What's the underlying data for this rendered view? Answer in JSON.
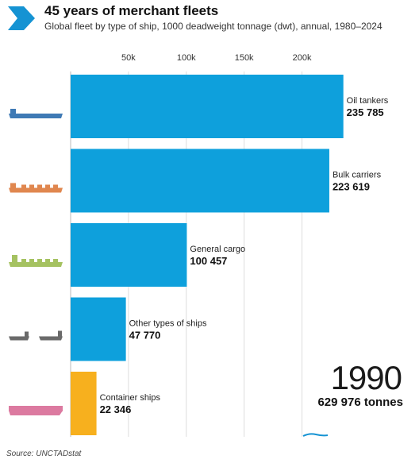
{
  "title": "45 years of merchant fleets",
  "subtitle": "Global fleet by type of ship, 1000 deadweight tonnage (dwt), annual, 1980–2024",
  "year": "1990",
  "total": "629 976 tonnes",
  "source": "Source: UNCTADstat",
  "colors": {
    "accent": "#0ea0dc",
    "highlight": "#f7b01e",
    "logo": "#1593d3"
  },
  "chart_data": {
    "type": "bar",
    "orientation": "horizontal",
    "categories": [
      "Oil tankers",
      "Bulk carriers",
      "General cargo",
      "Other types of ships",
      "Container ships"
    ],
    "values": [
      235785,
      223619,
      100457,
      47770,
      22346
    ],
    "value_labels": [
      "235 785",
      "223 619",
      "100 457",
      "47 770",
      "22 346"
    ],
    "bar_colors": [
      "#0ea0dc",
      "#0ea0dc",
      "#0ea0dc",
      "#0ea0dc",
      "#f7b01e"
    ],
    "ship_icon_colors": [
      "#3f7ab5",
      "#e0874f",
      "#a5c261",
      "#6a6a6a",
      "#dc7aa0"
    ],
    "xticks": [
      "50k",
      "100k",
      "150k",
      "200k"
    ],
    "xtick_values": [
      50000,
      100000,
      150000,
      200000
    ],
    "xlim": [
      0,
      236000
    ],
    "grid": true
  }
}
